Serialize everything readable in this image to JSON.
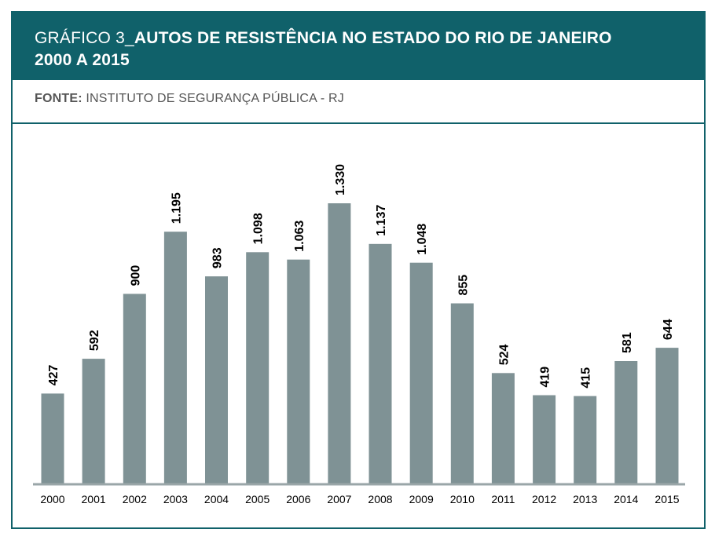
{
  "header": {
    "prefix": "GRÁFICO 3_",
    "title_line1": "AUTOS DE RESISTÊNCIA NO ESTADO DO RIO DE JANEIRO",
    "title_line2": "2000 A 2015"
  },
  "source": {
    "label": "FONTE:",
    "text": "INSTITUTO DE SEGURANÇA PÚBLICA - RJ"
  },
  "colors": {
    "header_bg": "#10616a",
    "bar": "#7f9295",
    "axis": "#9aa6a8"
  },
  "chart_data": {
    "type": "bar",
    "categories": [
      "2000",
      "2001",
      "2002",
      "2003",
      "2004",
      "2005",
      "2006",
      "2007",
      "2008",
      "2009",
      "2010",
      "2011",
      "2012",
      "2013",
      "2014",
      "2015"
    ],
    "values": [
      427,
      592,
      900,
      1195,
      983,
      1098,
      1063,
      1330,
      1137,
      1048,
      855,
      524,
      419,
      415,
      581,
      644
    ],
    "data_labels": [
      "427",
      "592",
      "900",
      "1.195",
      "983",
      "1.098",
      "1.063",
      "1.330",
      "1.137",
      "1.048",
      "855",
      "524",
      "419",
      "415",
      "581",
      "644"
    ],
    "ylim": [
      0,
      1330
    ],
    "grid": false,
    "legend": "none",
    "label_orientation": "vertical"
  }
}
